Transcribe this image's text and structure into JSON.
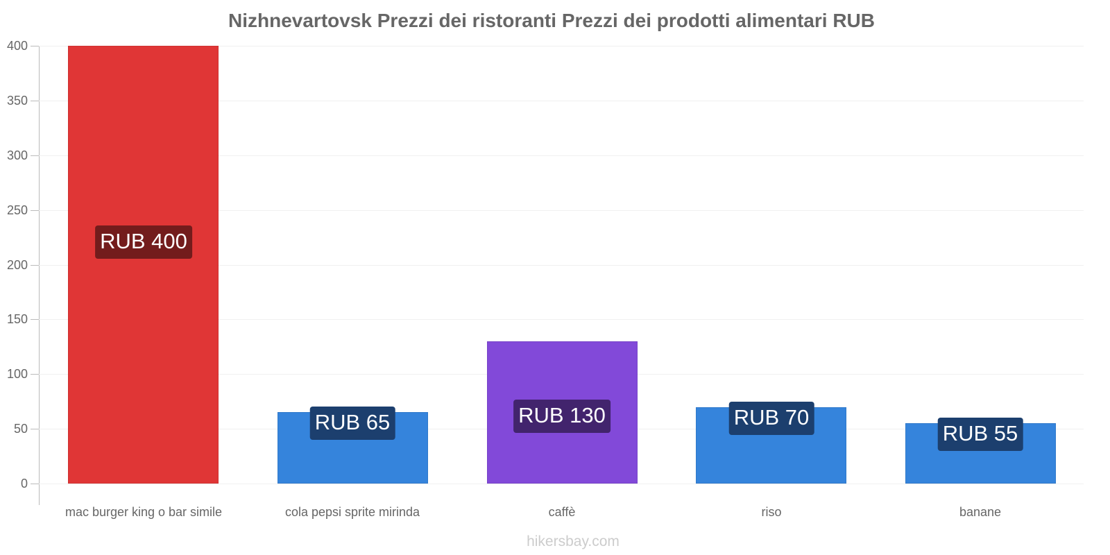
{
  "chart_data": {
    "type": "bar",
    "title": "Nizhnevartovsk Prezzi dei ristoranti Prezzi dei prodotti alimentari RUB",
    "xlabel": "",
    "ylabel": "",
    "ylim": [
      0,
      400
    ],
    "yticks": [
      0,
      50,
      100,
      150,
      200,
      250,
      300,
      350,
      400
    ],
    "grid": true,
    "legend": "none",
    "categories": [
      "mac burger king o bar simile",
      "cola pepsi sprite mirinda",
      "caffè",
      "riso",
      "banane"
    ],
    "values": [
      400,
      65,
      130,
      70,
      55
    ],
    "data_labels": [
      "RUB 400",
      "RUB 65",
      "RUB 130",
      "RUB 70",
      "RUB 55"
    ],
    "colors": [
      "#e03636",
      "#3584dc",
      "#8249d9",
      "#3584dc",
      "#3584dc"
    ],
    "label_colors": [
      "#731c1c",
      "#1c3f6e",
      "#42246d",
      "#1c3f6e",
      "#1c3f6e"
    ]
  },
  "yaxis": {
    "ticks": [
      "0",
      "50",
      "100",
      "150",
      "200",
      "250",
      "300",
      "350",
      "400"
    ]
  },
  "footer": {
    "watermark": "hikersbay.com"
  }
}
